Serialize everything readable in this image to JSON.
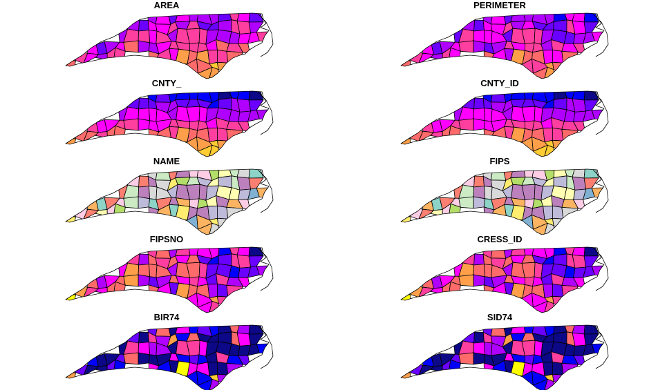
{
  "panels": [
    {
      "title": "AREA",
      "palette": "sf_colors"
    },
    {
      "title": "PERIMETER",
      "palette": "sf_colors"
    },
    {
      "title": "CNTY_",
      "palette": "sf_colors"
    },
    {
      "title": "CNTY_ID",
      "palette": "sf_colors"
    },
    {
      "title": "NAME",
      "palette": "set3_pastel"
    },
    {
      "title": "FIPS",
      "palette": "set3_pastel"
    },
    {
      "title": "FIPSNO",
      "palette": "sf_colors"
    },
    {
      "title": "CRESS_ID",
      "palette": "sf_colors"
    },
    {
      "title": "BIR74",
      "palette": "sf_colors"
    },
    {
      "title": "SID74",
      "palette": "sf_colors"
    }
  ],
  "palettes": {
    "sf_colors": [
      "#0d0887",
      "#0000ff",
      "#6a00ff",
      "#b000ff",
      "#ff00ff",
      "#ff3f9f",
      "#ff6b6b",
      "#ff9f4a",
      "#ffcc33",
      "#ffff00"
    ],
    "set3_pastel": [
      "#8dd3c7",
      "#ffffb3",
      "#bebada",
      "#fb8072",
      "#80b1d3",
      "#fdb462",
      "#b3de69",
      "#fccde5",
      "#d9d9d9",
      "#bc80bd",
      "#ccebc5",
      "#ffed6f"
    ]
  }
}
